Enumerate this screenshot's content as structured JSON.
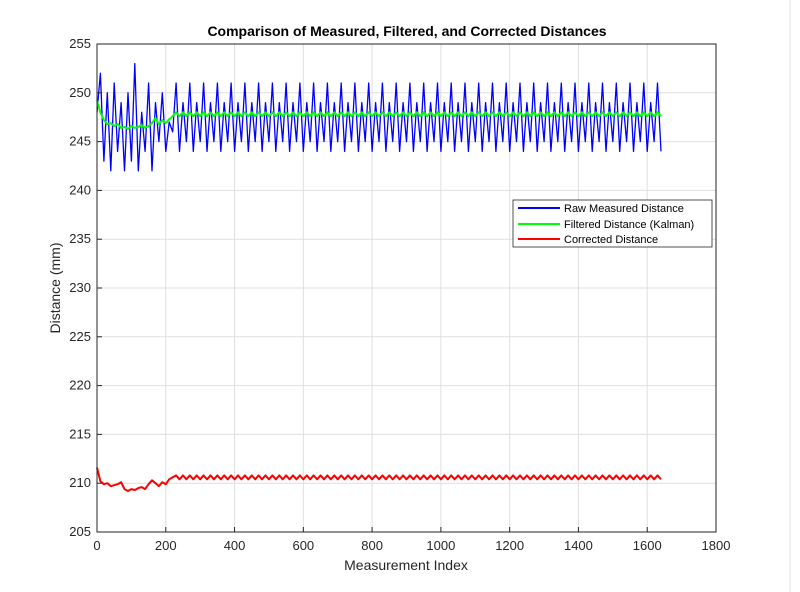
{
  "chart_data": {
    "type": "line",
    "title": "Comparison of Measured, Filtered, and Corrected Distances",
    "xlabel": "Measurement Index",
    "ylabel": "Distance (mm)",
    "xlim": [
      0,
      1800
    ],
    "ylim": [
      205,
      255
    ],
    "xticks": [
      0,
      200,
      400,
      600,
      800,
      1000,
      1200,
      1400,
      1600,
      1800
    ],
    "yticks": [
      205,
      210,
      215,
      220,
      225,
      230,
      235,
      240,
      245,
      250,
      255
    ],
    "grid": true,
    "legend_position": "right",
    "x_first": [
      0,
      10,
      20,
      30,
      40,
      50,
      60,
      70,
      80,
      90,
      100,
      110,
      120,
      130,
      140,
      150,
      160,
      170,
      180,
      190,
      200,
      210,
      220
    ],
    "x_steady_start": 230,
    "x_end": 1640,
    "series": [
      {
        "name": "Raw Measured Distance",
        "color": "#0000ff",
        "values_first": [
          248,
          252,
          243,
          250,
          242,
          251,
          244,
          249,
          242,
          250,
          243,
          253,
          242,
          248,
          244,
          251,
          242,
          249,
          245,
          250,
          244,
          247,
          246
        ],
        "values_steady_cycle": [
          251,
          244,
          249,
          245
        ]
      },
      {
        "name": "Filtered Distance (Kalman)",
        "color": "#00ff00",
        "values_first": [
          249.2,
          248.0,
          247.2,
          246.8,
          246.9,
          246.6,
          246.8,
          246.4,
          246.5,
          246.3,
          246.6,
          246.4,
          246.5,
          246.7,
          246.4,
          246.6,
          246.9,
          247.4,
          246.8,
          247.2,
          246.9,
          247.3,
          247.6
        ],
        "values_steady_cycle": [
          248.0,
          247.6
        ]
      },
      {
        "name": "Corrected Distance",
        "color": "#ff0000",
        "values_first": [
          211.6,
          210.2,
          209.9,
          210.0,
          209.7,
          209.8,
          209.9,
          210.1,
          209.4,
          209.2,
          209.4,
          209.3,
          209.5,
          209.6,
          209.4,
          209.9,
          210.3,
          210.0,
          209.7,
          210.1,
          209.9,
          210.4,
          210.6
        ],
        "values_steady_cycle": [
          210.8,
          210.4
        ]
      }
    ]
  }
}
